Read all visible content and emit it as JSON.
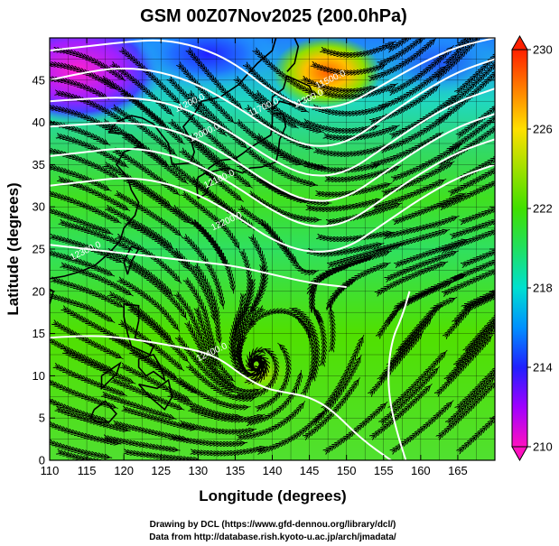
{
  "chart_data": {
    "type": "heatmap",
    "title": "GSM 00Z07Nov2025 (200.0hPa)",
    "xlabel": "Longitude (degrees)",
    "ylabel": "Latitude  (degrees)",
    "xlim": [
      110,
      170
    ],
    "ylim": [
      0,
      50
    ],
    "x_ticks": [
      110,
      115,
      120,
      125,
      130,
      135,
      140,
      145,
      150,
      155,
      160,
      165
    ],
    "y_ticks": [
      0,
      5,
      10,
      15,
      20,
      25,
      30,
      35,
      40,
      45
    ],
    "grid": true,
    "colorbar": {
      "ticks": [
        210,
        214,
        218,
        222,
        226,
        230
      ],
      "range": [
        210,
        230
      ],
      "colors": [
        "#ff10c0",
        "#a000ff",
        "#2020ff",
        "#0090ff",
        "#00e0d0",
        "#20e060",
        "#40e000",
        "#a0e000",
        "#ffe000",
        "#ff8000",
        "#ff2000"
      ]
    },
    "contours": {
      "color": "#ffffff",
      "labels": [
        {
          "text": "11200.0",
          "lon": 129,
          "lat": 42.0
        },
        {
          "text": "11700.0",
          "lon": 139,
          "lat": 41.5
        },
        {
          "text": "11500.0",
          "lon": 148,
          "lat": 44.8
        },
        {
          "text": "11300.0",
          "lon": 145,
          "lat": 42.5
        },
        {
          "text": "12000.0",
          "lon": 131,
          "lat": 38.5
        },
        {
          "text": "12100.0",
          "lon": 133,
          "lat": 33.0
        },
        {
          "text": "12200.0",
          "lon": 134,
          "lat": 28.0
        },
        {
          "text": "12300.0",
          "lon": 115,
          "lat": 24.5
        },
        {
          "text": "12400.0",
          "lon": 132,
          "lat": 12.5
        }
      ],
      "lines": [
        {
          "lon": [
            110,
            115,
            120,
            125,
            130,
            135,
            140,
            145,
            150,
            155,
            160,
            165,
            170
          ],
          "lat": [
            48.5,
            49.0,
            49.5,
            49.8,
            49.0,
            47.0,
            43.5,
            41.5,
            42.0,
            44.5,
            47.0,
            49.0,
            50.0
          ]
        },
        {
          "lon": [
            110,
            115,
            120,
            125,
            130,
            135,
            140,
            145,
            150,
            155,
            160,
            165,
            170
          ],
          "lat": [
            45.0,
            46.0,
            46.5,
            46.0,
            44.5,
            42.0,
            39.0,
            37.0,
            37.5,
            40.5,
            43.5,
            46.0,
            47.5
          ]
        },
        {
          "lon": [
            110,
            115,
            120,
            125,
            130,
            135,
            140,
            145,
            150,
            155,
            160,
            165,
            170
          ],
          "lat": [
            42.5,
            42.8,
            43.0,
            42.5,
            41.0,
            38.5,
            35.5,
            33.5,
            34.0,
            37.0,
            40.0,
            42.5,
            44.0
          ]
        },
        {
          "lon": [
            110,
            115,
            120,
            125,
            130,
            135,
            140,
            145,
            150,
            155,
            160,
            165,
            170
          ],
          "lat": [
            39.5,
            39.8,
            40.0,
            39.5,
            38.0,
            35.5,
            32.5,
            30.5,
            31.0,
            34.0,
            37.0,
            39.5,
            41.0
          ]
        },
        {
          "lon": [
            110,
            115,
            120,
            125,
            130,
            135,
            140,
            145,
            150,
            155,
            160,
            165,
            170
          ],
          "lat": [
            36.0,
            36.5,
            37.0,
            36.5,
            35.0,
            32.5,
            29.5,
            27.5,
            28.0,
            31.0,
            34.0,
            36.5,
            38.0
          ]
        },
        {
          "lon": [
            110,
            115,
            120,
            125,
            130,
            135,
            140,
            145,
            150,
            155,
            160,
            165,
            170
          ],
          "lat": [
            32.5,
            33.0,
            33.5,
            33.0,
            31.5,
            29.0,
            26.0,
            24.5,
            25.0,
            28.0,
            31.0,
            33.5,
            35.0
          ]
        },
        {
          "lon": [
            110,
            115,
            120,
            125,
            130,
            135,
            140,
            145,
            150
          ],
          "lat": [
            25.5,
            25.0,
            24.5,
            24.0,
            23.5,
            23.0,
            22.0,
            21.0,
            20.5
          ]
        },
        {
          "lon": [
            110,
            115,
            120,
            125,
            130,
            133,
            136,
            139,
            142,
            145,
            148,
            152,
            156
          ],
          "lat": [
            14.5,
            14.8,
            14.5,
            13.8,
            13.0,
            12.0,
            10.0,
            8.5,
            8.0,
            7.5,
            6.0,
            2.5,
            0.0
          ]
        },
        {
          "lon": [
            158,
            156.5,
            155.5,
            156,
            157.5,
            158.5
          ],
          "lat": [
            0.0,
            4.0,
            9.0,
            14.0,
            17.0,
            20.0
          ]
        }
      ]
    },
    "vortex": {
      "lon": 137.8,
      "lat": 11.2
    }
  },
  "credits": {
    "line1": "Drawing by DCL (https://www.gfd-dennou.org/library/dcl/)",
    "line2": "Data from http://database.rish.kyoto-u.ac.jp/arch/jmadata/"
  }
}
